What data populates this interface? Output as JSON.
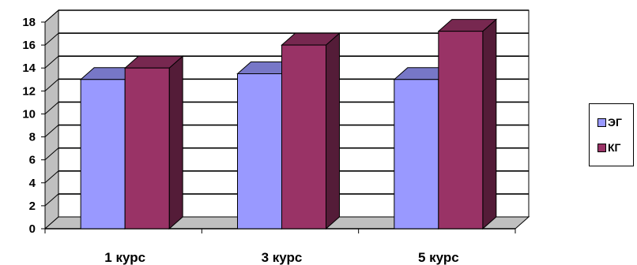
{
  "chart_data": {
    "type": "bar",
    "title": "",
    "xlabel": "",
    "ylabel": "",
    "categories": [
      "1 курс",
      "3 курс",
      "5 курс"
    ],
    "series": [
      {
        "name": "ЭГ",
        "values": [
          13,
          13.5,
          13
        ],
        "color": "#9999ff"
      },
      {
        "name": "КГ",
        "values": [
          14,
          16,
          17.2
        ],
        "color": "#993366"
      }
    ],
    "ylim": [
      0,
      18
    ],
    "yticks": [
      "0",
      "2",
      "4",
      "6",
      "8",
      "10",
      "12",
      "14",
      "16",
      "18"
    ],
    "grid": true,
    "legend_position": "right",
    "three_d": true
  }
}
